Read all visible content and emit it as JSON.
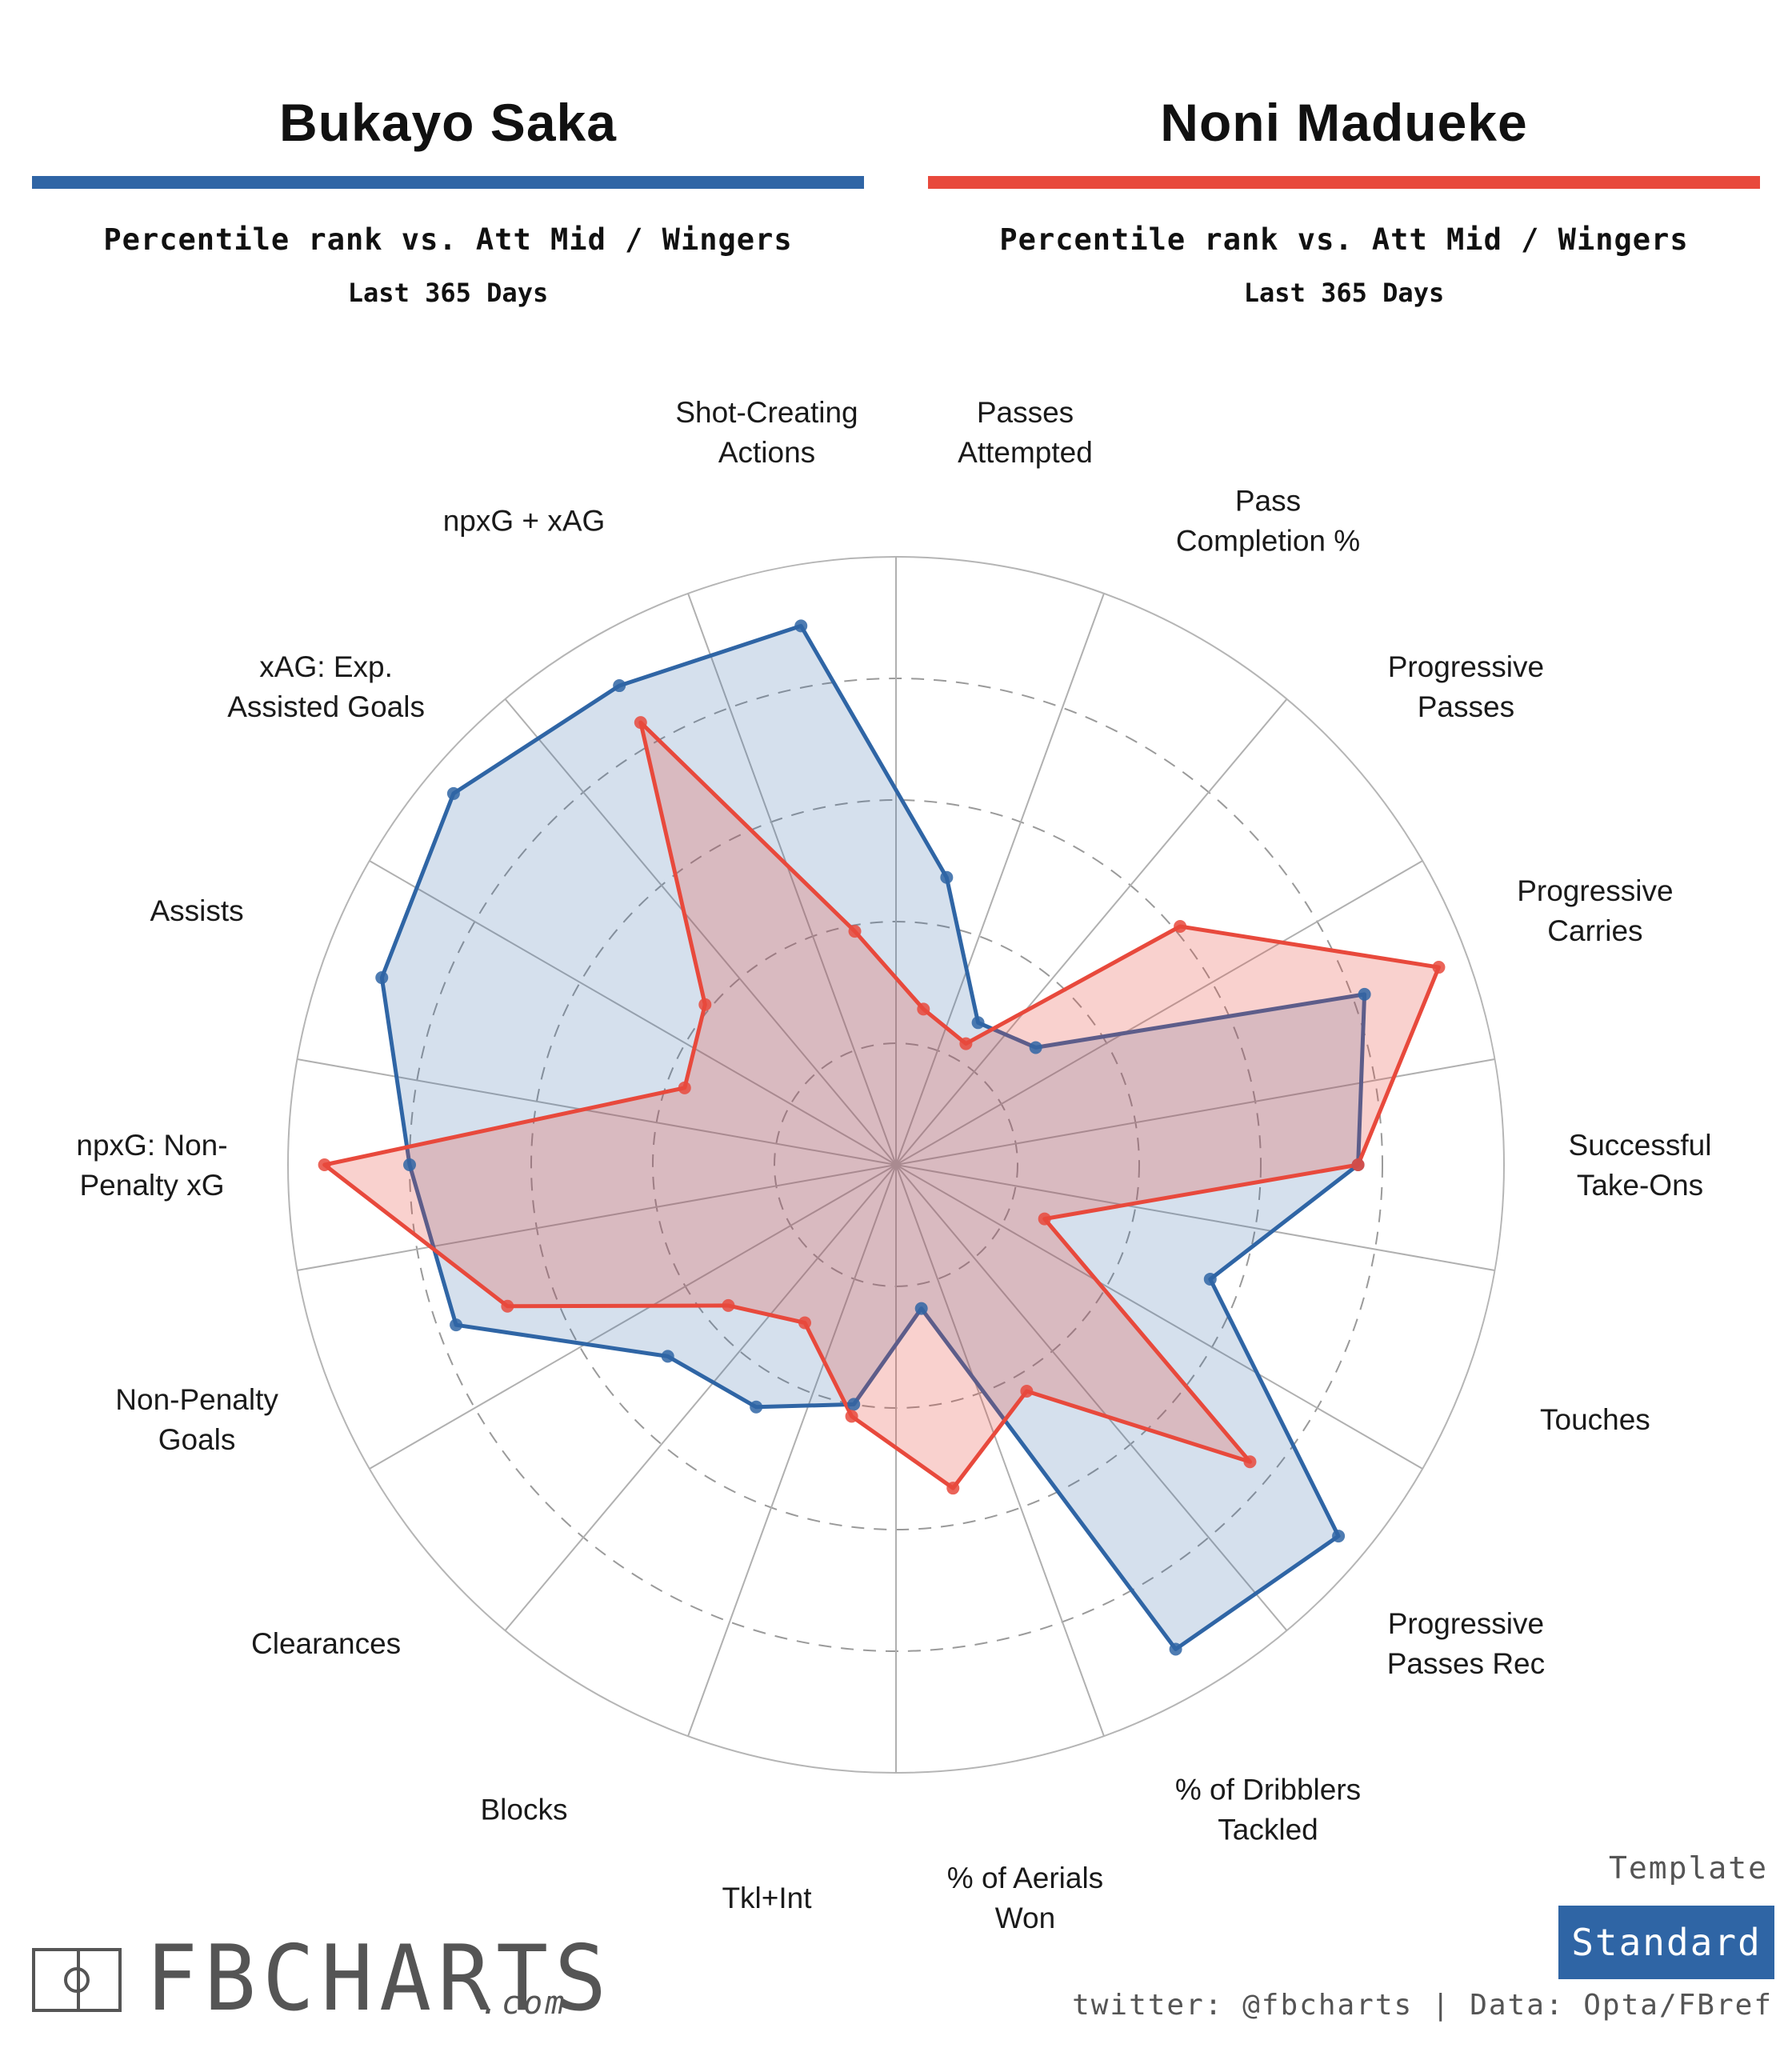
{
  "players": [
    {
      "name": "Bukayo Saka",
      "subtitle": "Percentile rank vs. Att Mid / Wingers",
      "period": "Last 365 Days",
      "color": "#2f65a5"
    },
    {
      "name": "Noni Madueke",
      "subtitle": "Percentile rank vs. Att Mid / Wingers",
      "period": "Last 365 Days",
      "color": "#e8493c"
    }
  ],
  "footer": {
    "brand": "FBCHARTS",
    "brand_suffix": ".com",
    "template_label": "Template",
    "template_value": "Standard",
    "credit": "twitter: @fbcharts | Data: Opta/FBref"
  },
  "chart_data": {
    "type": "radar",
    "range": [
      0,
      100
    ],
    "grid": true,
    "categories": [
      [
        "Shot-Creating",
        "Actions"
      ],
      [
        "Passes",
        "Attempted"
      ],
      [
        "Pass",
        "Completion %"
      ],
      [
        "Progressive",
        "Passes"
      ],
      [
        "Progressive",
        "Carries"
      ],
      [
        "Successful",
        "Take-Ons"
      ],
      [
        "Touches"
      ],
      [
        "Progressive",
        "Passes Rec"
      ],
      [
        "% of Dribblers",
        "Tackled"
      ],
      [
        "% of Aerials",
        "Won"
      ],
      [
        "Tkl+Int"
      ],
      [
        "Blocks"
      ],
      [
        "Clearances"
      ],
      [
        "Non-Penalty",
        "Goals"
      ],
      [
        "npxG: Non-",
        "Penalty xG"
      ],
      [
        "Assists"
      ],
      [
        "xAG: Exp.",
        "Assisted Goals"
      ],
      [
        "npxG + xAG"
      ]
    ],
    "series": [
      {
        "name": "Bukayo Saka",
        "color": "#2f65a5",
        "values": [
          90,
          48,
          27,
          30,
          82,
          76,
          55,
          95,
          92,
          24,
          40,
          46,
          49,
          77,
          80,
          90,
          95,
          91
        ]
      },
      {
        "name": "Noni Madueke",
        "color": "#e8493c",
        "values": [
          39,
          26,
          23,
          61,
          95,
          76,
          26,
          76,
          43,
          54,
          42,
          30,
          36,
          68,
          94,
          37,
          41,
          84
        ]
      }
    ]
  }
}
